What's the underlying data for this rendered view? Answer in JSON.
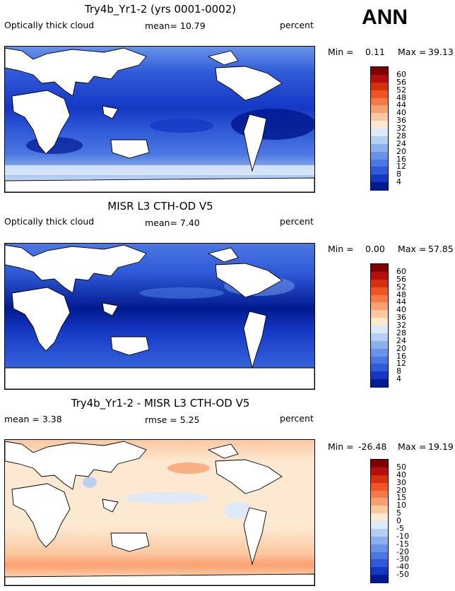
{
  "season": "ANN",
  "panels": [
    {
      "title": "Try4b_Yr1-2 (yrs 0001-0002)",
      "left_label": "Optically thick cloud",
      "mid_label": "mean=   10.79",
      "right_label": "percent",
      "min_label": "Min =",
      "min_value": "0.11",
      "max_label": "Max =",
      "max_value": "39.13",
      "colorbar_labels": [
        "60",
        "56",
        "52",
        "48",
        "44",
        "40",
        "36",
        "32",
        "28",
        "24",
        "20",
        "16",
        "12",
        "8",
        "4"
      ],
      "colorbar_colors": [
        "#7f0000",
        "#b50e0e",
        "#d8300f",
        "#ee5522",
        "#f57a45",
        "#f9a070",
        "#fcc8a0",
        "#fde8d2",
        "#dce9f8",
        "#b6cef2",
        "#8bb0ec",
        "#6a93e8",
        "#4c78e3",
        "#2f5ad8",
        "#1538c4",
        "#001a8f"
      ]
    },
    {
      "title": "MISR L3 CTH-OD V5",
      "left_label": "Optically thick cloud",
      "mid_label": "mean=   7.40",
      "right_label": "percent",
      "min_label": "Min =",
      "min_value": "0.00",
      "max_label": "Max =",
      "max_value": "57.85",
      "colorbar_labels": [
        "60",
        "56",
        "52",
        "48",
        "44",
        "40",
        "36",
        "32",
        "28",
        "24",
        "20",
        "16",
        "12",
        "8",
        "4"
      ],
      "colorbar_colors": [
        "#7f0000",
        "#b50e0e",
        "#d8300f",
        "#ee5522",
        "#f57a45",
        "#f9a070",
        "#fcc8a0",
        "#fde8d2",
        "#dce9f8",
        "#b6cef2",
        "#8bb0ec",
        "#6a93e8",
        "#4c78e3",
        "#2f5ad8",
        "#1538c4",
        "#001a8f"
      ]
    },
    {
      "title": "Try4b_Yr1-2 - MISR L3 CTH-OD V5",
      "left_label": "mean =    3.38",
      "mid_label": "rmse =    5.25",
      "right_label": "percent",
      "min_label": "Min =",
      "min_value": "-26.48",
      "max_label": "Max =",
      "max_value": "19.19",
      "colorbar_labels": [
        "50",
        "40",
        "30",
        "20",
        "15",
        "10",
        "5",
        "0",
        "-5",
        "-10",
        "-15",
        "-20",
        "-30",
        "-40",
        "-50"
      ],
      "colorbar_colors": [
        "#7f0000",
        "#b50e0e",
        "#d8300f",
        "#ee5522",
        "#f57a45",
        "#f9a070",
        "#fcc8a0",
        "#fde8d2",
        "#dce9f8",
        "#b6cef2",
        "#8bb0ec",
        "#6a93e8",
        "#4c78e3",
        "#2f5ad8",
        "#1538c4",
        "#001a8f"
      ]
    }
  ]
}
